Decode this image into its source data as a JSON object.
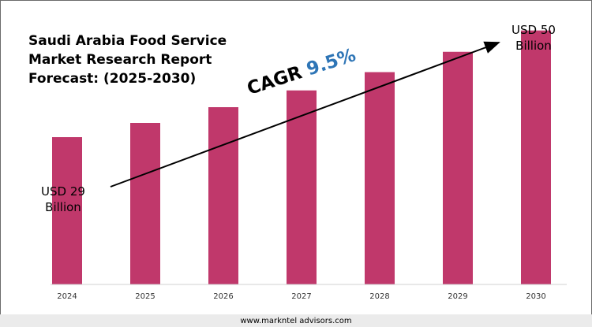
{
  "title": "Saudi Arabia Food Service\nMarket Research Report\nForecast: (2025-2030)",
  "cagr": {
    "text": "CAGR",
    "value": "9.5%"
  },
  "start_label": "USD 29\nBillion",
  "end_label": "USD 50\nBillion",
  "website": "www.markntel advisors.com",
  "colors": {
    "bar": "#c0386b",
    "cagr": "#2e75b6",
    "arrow": "#000000"
  },
  "chart_data": {
    "type": "bar",
    "categories": [
      "2024",
      "2025",
      "2026",
      "2027",
      "2028",
      "2029",
      "2030"
    ],
    "values": [
      29,
      31.8,
      34.9,
      38.2,
      41.8,
      45.8,
      50
    ],
    "ylim": [
      0,
      56
    ],
    "grid": false
  }
}
